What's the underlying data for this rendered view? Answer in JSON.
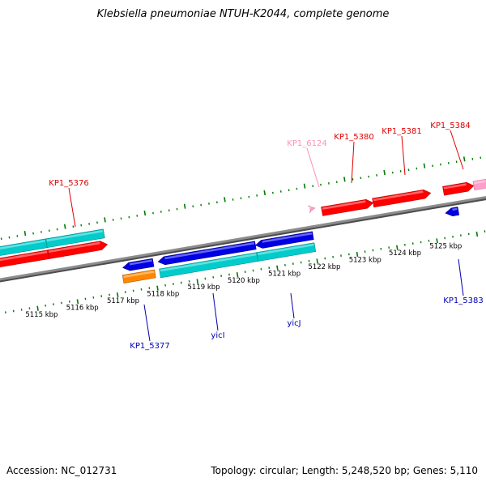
{
  "title": "Klebsiella pneumoniae NTUH-K2044, complete genome",
  "footer": {
    "accession": "Accession: NC_012731",
    "summary": "Topology: circular; Length: 5,248,520 bp; Genes: 5,110"
  },
  "colors": {
    "fwd_cds": "#ff0000",
    "fwd_cds_dark": "#b80000",
    "rev_cds": "#0000e6",
    "rev_cds_dark": "#00007a",
    "rna": "#00cccc",
    "rna_dark": "#008c8c",
    "pseudo": "#ff8800",
    "pseudo_dark": "#b35f00",
    "misc": "#ff9ec8",
    "backbone": "#8c8c8c",
    "ticks": "#007a00",
    "fwd_label": "#e00000",
    "rev_label": "#0000b0",
    "misc_label": "#ff8fb8"
  },
  "ticks": [
    "5115 kbp",
    "5116 kbp",
    "5117 kbp",
    "5118 kbp",
    "5119 kbp",
    "5120 kbp",
    "5121 kbp",
    "5122 kbp",
    "5123 kbp",
    "5124 kbp",
    "5125 kbp"
  ],
  "gene_labels": [
    {
      "name": "KP1_5376",
      "strand": "forward"
    },
    {
      "name": "KP1_6124",
      "strand": "misc"
    },
    {
      "name": "KP1_5380",
      "strand": "forward"
    },
    {
      "name": "KP1_5381",
      "strand": "forward"
    },
    {
      "name": "KP1_5384",
      "strand": "forward"
    },
    {
      "name": "KP1_5377",
      "strand": "reverse"
    },
    {
      "name": "yicI",
      "strand": "reverse"
    },
    {
      "name": "yicJ",
      "strand": "reverse"
    },
    {
      "name": "KP1_5383",
      "strand": "reverse"
    }
  ]
}
